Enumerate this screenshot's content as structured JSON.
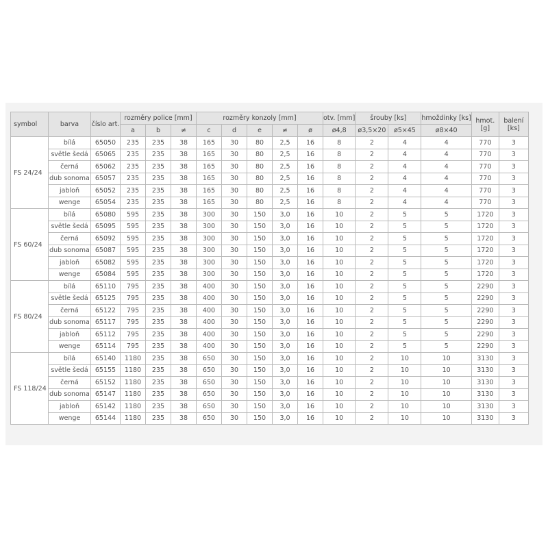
{
  "headers": {
    "symbol": "symbol",
    "barva": "barva",
    "cislo": "číslo art.",
    "police": "rozměry police [mm]",
    "konzoly": "rozměry konzoly [mm]",
    "otv": "otv. [mm]",
    "srouby": "šrouby [ks]",
    "hmozdinky": "hmoždinky [ks]",
    "hmot": "hmot. [g]",
    "baleni": "balení [ks]",
    "sub": [
      "a",
      "b",
      "≠",
      "c",
      "d",
      "e",
      "≠",
      "ø",
      "ø4,8",
      "ø3,5×20",
      "ø5×45",
      "ø8×40"
    ]
  },
  "groups": [
    {
      "symbol": "FS 24/24",
      "rows": [
        [
          "bílá",
          "65050",
          "235",
          "235",
          "38",
          "165",
          "30",
          "80",
          "2,5",
          "16",
          "8",
          "2",
          "4",
          "4",
          "770",
          "3"
        ],
        [
          "světle šedá",
          "65065",
          "235",
          "235",
          "38",
          "165",
          "30",
          "80",
          "2,5",
          "16",
          "8",
          "2",
          "4",
          "4",
          "770",
          "3"
        ],
        [
          "černá",
          "65062",
          "235",
          "235",
          "38",
          "165",
          "30",
          "80",
          "2,5",
          "16",
          "8",
          "2",
          "4",
          "4",
          "770",
          "3"
        ],
        [
          "dub sonoma",
          "65057",
          "235",
          "235",
          "38",
          "165",
          "30",
          "80",
          "2,5",
          "16",
          "8",
          "2",
          "4",
          "4",
          "770",
          "3"
        ],
        [
          "jabloň",
          "65052",
          "235",
          "235",
          "38",
          "165",
          "30",
          "80",
          "2,5",
          "16",
          "8",
          "2",
          "4",
          "4",
          "770",
          "3"
        ],
        [
          "wenge",
          "65054",
          "235",
          "235",
          "38",
          "165",
          "30",
          "80",
          "2,5",
          "16",
          "8",
          "2",
          "4",
          "4",
          "770",
          "3"
        ]
      ]
    },
    {
      "symbol": "FS 60/24",
      "rows": [
        [
          "bílá",
          "65080",
          "595",
          "235",
          "38",
          "300",
          "30",
          "150",
          "3,0",
          "16",
          "10",
          "2",
          "5",
          "5",
          "1720",
          "3"
        ],
        [
          "světle šedá",
          "65095",
          "595",
          "235",
          "38",
          "300",
          "30",
          "150",
          "3,0",
          "16",
          "10",
          "2",
          "5",
          "5",
          "1720",
          "3"
        ],
        [
          "černá",
          "65092",
          "595",
          "235",
          "38",
          "300",
          "30",
          "150",
          "3,0",
          "16",
          "10",
          "2",
          "5",
          "5",
          "1720",
          "3"
        ],
        [
          "dub sonoma",
          "65087",
          "595",
          "235",
          "38",
          "300",
          "30",
          "150",
          "3,0",
          "16",
          "10",
          "2",
          "5",
          "5",
          "1720",
          "3"
        ],
        [
          "jabloň",
          "65082",
          "595",
          "235",
          "38",
          "300",
          "30",
          "150",
          "3,0",
          "16",
          "10",
          "2",
          "5",
          "5",
          "1720",
          "3"
        ],
        [
          "wenge",
          "65084",
          "595",
          "235",
          "38",
          "300",
          "30",
          "150",
          "3,0",
          "16",
          "10",
          "2",
          "5",
          "5",
          "1720",
          "3"
        ]
      ]
    },
    {
      "symbol": "FS 80/24",
      "rows": [
        [
          "bílá",
          "65110",
          "795",
          "235",
          "38",
          "400",
          "30",
          "150",
          "3,0",
          "16",
          "10",
          "2",
          "5",
          "5",
          "2290",
          "3"
        ],
        [
          "světle šedá",
          "65125",
          "795",
          "235",
          "38",
          "400",
          "30",
          "150",
          "3,0",
          "16",
          "10",
          "2",
          "5",
          "5",
          "2290",
          "3"
        ],
        [
          "černá",
          "65122",
          "795",
          "235",
          "38",
          "400",
          "30",
          "150",
          "3,0",
          "16",
          "10",
          "2",
          "5",
          "5",
          "2290",
          "3"
        ],
        [
          "dub sonoma",
          "65117",
          "795",
          "235",
          "38",
          "400",
          "30",
          "150",
          "3,0",
          "16",
          "10",
          "2",
          "5",
          "5",
          "2290",
          "3"
        ],
        [
          "jabloň",
          "65112",
          "795",
          "235",
          "38",
          "400",
          "30",
          "150",
          "3,0",
          "16",
          "10",
          "2",
          "5",
          "5",
          "2290",
          "3"
        ],
        [
          "wenge",
          "65114",
          "795",
          "235",
          "38",
          "400",
          "30",
          "150",
          "3,0",
          "16",
          "10",
          "2",
          "5",
          "5",
          "2290",
          "3"
        ]
      ]
    },
    {
      "symbol": "FS 118/24",
      "rows": [
        [
          "bílá",
          "65140",
          "1180",
          "235",
          "38",
          "650",
          "30",
          "150",
          "3,0",
          "16",
          "10",
          "2",
          "10",
          "10",
          "3130",
          "3"
        ],
        [
          "světle šedá",
          "65155",
          "1180",
          "235",
          "38",
          "650",
          "30",
          "150",
          "3,0",
          "16",
          "10",
          "2",
          "10",
          "10",
          "3130",
          "3"
        ],
        [
          "černá",
          "65152",
          "1180",
          "235",
          "38",
          "650",
          "30",
          "150",
          "3,0",
          "16",
          "10",
          "2",
          "10",
          "10",
          "3130",
          "3"
        ],
        [
          "dub sonoma",
          "65147",
          "1180",
          "235",
          "38",
          "650",
          "30",
          "150",
          "3,0",
          "16",
          "10",
          "2",
          "10",
          "10",
          "3130",
          "3"
        ],
        [
          "jabloň",
          "65142",
          "1180",
          "235",
          "38",
          "650",
          "30",
          "150",
          "3,0",
          "16",
          "10",
          "2",
          "10",
          "10",
          "3130",
          "3"
        ],
        [
          "wenge",
          "65144",
          "1180",
          "235",
          "38",
          "650",
          "30",
          "150",
          "3,0",
          "16",
          "10",
          "2",
          "10",
          "10",
          "3130",
          "3"
        ]
      ]
    }
  ]
}
